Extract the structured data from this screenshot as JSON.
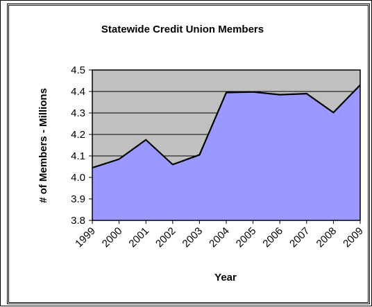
{
  "chart_data": {
    "type": "area",
    "title": "Statewide Credit Union Members",
    "xlabel": "Year",
    "ylabel": "# of Members - Millions",
    "categories": [
      "1999",
      "2000",
      "2001",
      "2002",
      "2003",
      "2004",
      "2005",
      "2006",
      "2007",
      "2008",
      "2009"
    ],
    "series": [
      {
        "values": [
          4.045,
          4.085,
          4.175,
          4.06,
          4.105,
          4.395,
          4.398,
          4.385,
          4.39,
          4.302,
          4.43
        ]
      }
    ],
    "ylim": [
      3.8,
      4.5
    ],
    "yticks": [
      "3.8",
      "3.9",
      "4.0",
      "4.1",
      "4.2",
      "4.3",
      "4.4",
      "4.5"
    ],
    "grid": true,
    "legend": "none",
    "colors": {
      "area_fill": "#9999ff",
      "plot_background": "#c0c0c0",
      "line": "#000000",
      "gridline": "#000000"
    }
  }
}
